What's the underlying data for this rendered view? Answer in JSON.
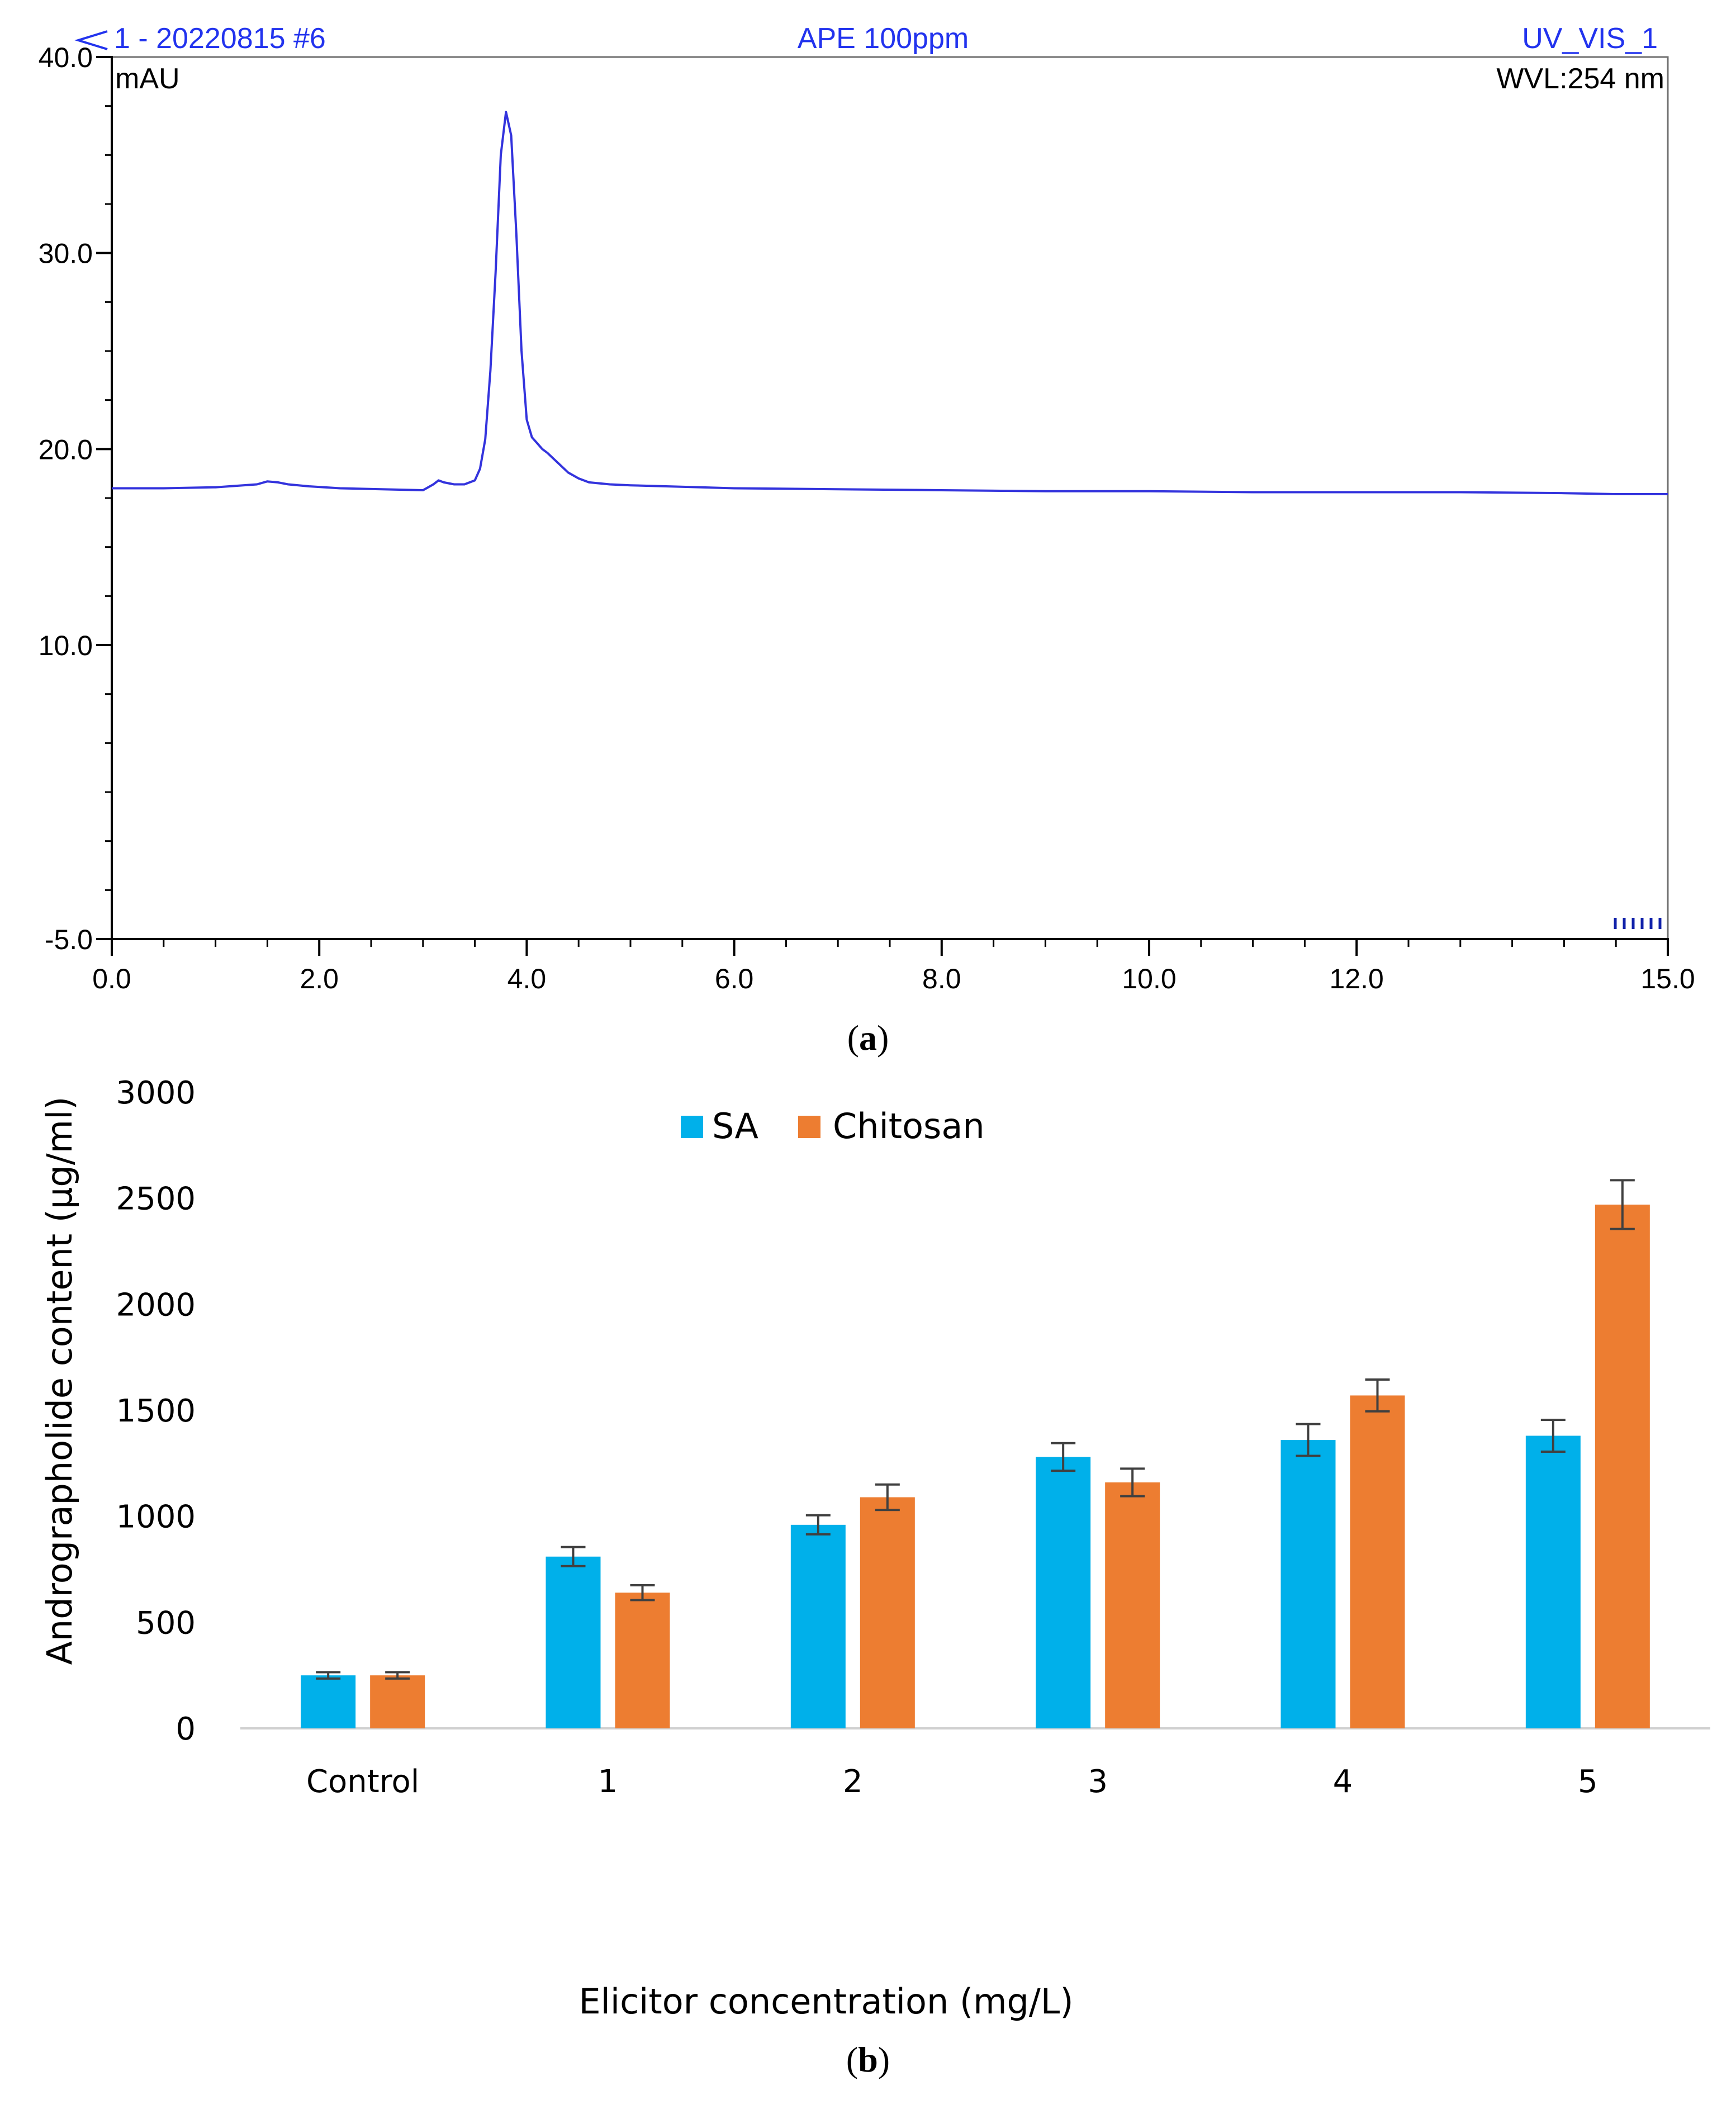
{
  "chart_data": [
    {
      "type": "line",
      "panel_label": "a",
      "header": {
        "left": "1 - 20220815 #6",
        "center": "APE 100ppm",
        "right": "UV_VIS_1"
      },
      "y_unit_label": "mAU",
      "wavelength_label": "WVL:254 nm",
      "xlim": [
        0,
        15
      ],
      "ylim": [
        -5,
        40
      ],
      "x_ticks": [
        0,
        2,
        4,
        6,
        8,
        10,
        12,
        15
      ],
      "x_tick_labels": [
        "0.0",
        "2.0",
        "4.0",
        "6.0",
        "8.0",
        "10.0",
        "12.0",
        "15.0"
      ],
      "y_ticks": [
        -5,
        10,
        20,
        30,
        40
      ],
      "y_tick_labels": [
        "-5.0",
        "10.0",
        "20.0",
        "30.0",
        "40.0"
      ],
      "series": [
        {
          "name": "UV_VIS_1",
          "color": "#3333dd",
          "x": [
            0.0,
            0.5,
            1.0,
            1.4,
            1.5,
            1.6,
            1.7,
            1.9,
            2.2,
            2.6,
            3.0,
            3.1,
            3.15,
            3.2,
            3.3,
            3.4,
            3.5,
            3.55,
            3.6,
            3.65,
            3.7,
            3.75,
            3.8,
            3.85,
            3.9,
            3.95,
            4.0,
            4.05,
            4.1,
            4.15,
            4.2,
            4.3,
            4.4,
            4.5,
            4.6,
            4.8,
            5.0,
            6.0,
            7.0,
            8.0,
            9.0,
            10.0,
            11.0,
            12.0,
            13.0,
            14.0,
            14.5,
            15.0
          ],
          "y": [
            18.0,
            18.0,
            18.05,
            18.2,
            18.35,
            18.3,
            18.2,
            18.1,
            18.0,
            17.95,
            17.9,
            18.2,
            18.4,
            18.3,
            18.2,
            18.2,
            18.4,
            19.0,
            20.5,
            24.0,
            29.0,
            35.0,
            37.2,
            36.0,
            31.0,
            25.0,
            21.5,
            20.6,
            20.3,
            20.0,
            19.8,
            19.3,
            18.8,
            18.5,
            18.3,
            18.2,
            18.15,
            18.0,
            17.95,
            17.9,
            17.85,
            17.85,
            17.8,
            17.8,
            17.8,
            17.75,
            17.7,
            17.7
          ]
        }
      ]
    },
    {
      "type": "bar",
      "panel_label": "b",
      "xlabel": "Elicitor concentration (mg/L)",
      "ylabel": "Andrographolide content (μg/ml)",
      "ylim": [
        0,
        3000
      ],
      "y_ticks": [
        0,
        500,
        1000,
        1500,
        2000,
        2500,
        3000
      ],
      "y_tick_labels": [
        "0",
        "500",
        "1000",
        "1500",
        "2000",
        "2500",
        "3000"
      ],
      "categories": [
        "Control",
        "1",
        "2",
        "3",
        "4",
        "5"
      ],
      "legend_position": "top-center",
      "series": [
        {
          "name": "SA",
          "color": "#00b0ea",
          "values": [
            250,
            810,
            960,
            1280,
            1360,
            1380
          ],
          "errors": [
            15,
            45,
            45,
            65,
            75,
            75
          ]
        },
        {
          "name": "Chitosan",
          "color": "#ed7d31",
          "values": [
            250,
            640,
            1090,
            1160,
            1570,
            2470
          ],
          "errors": [
            15,
            35,
            60,
            65,
            75,
            115
          ]
        }
      ]
    }
  ]
}
